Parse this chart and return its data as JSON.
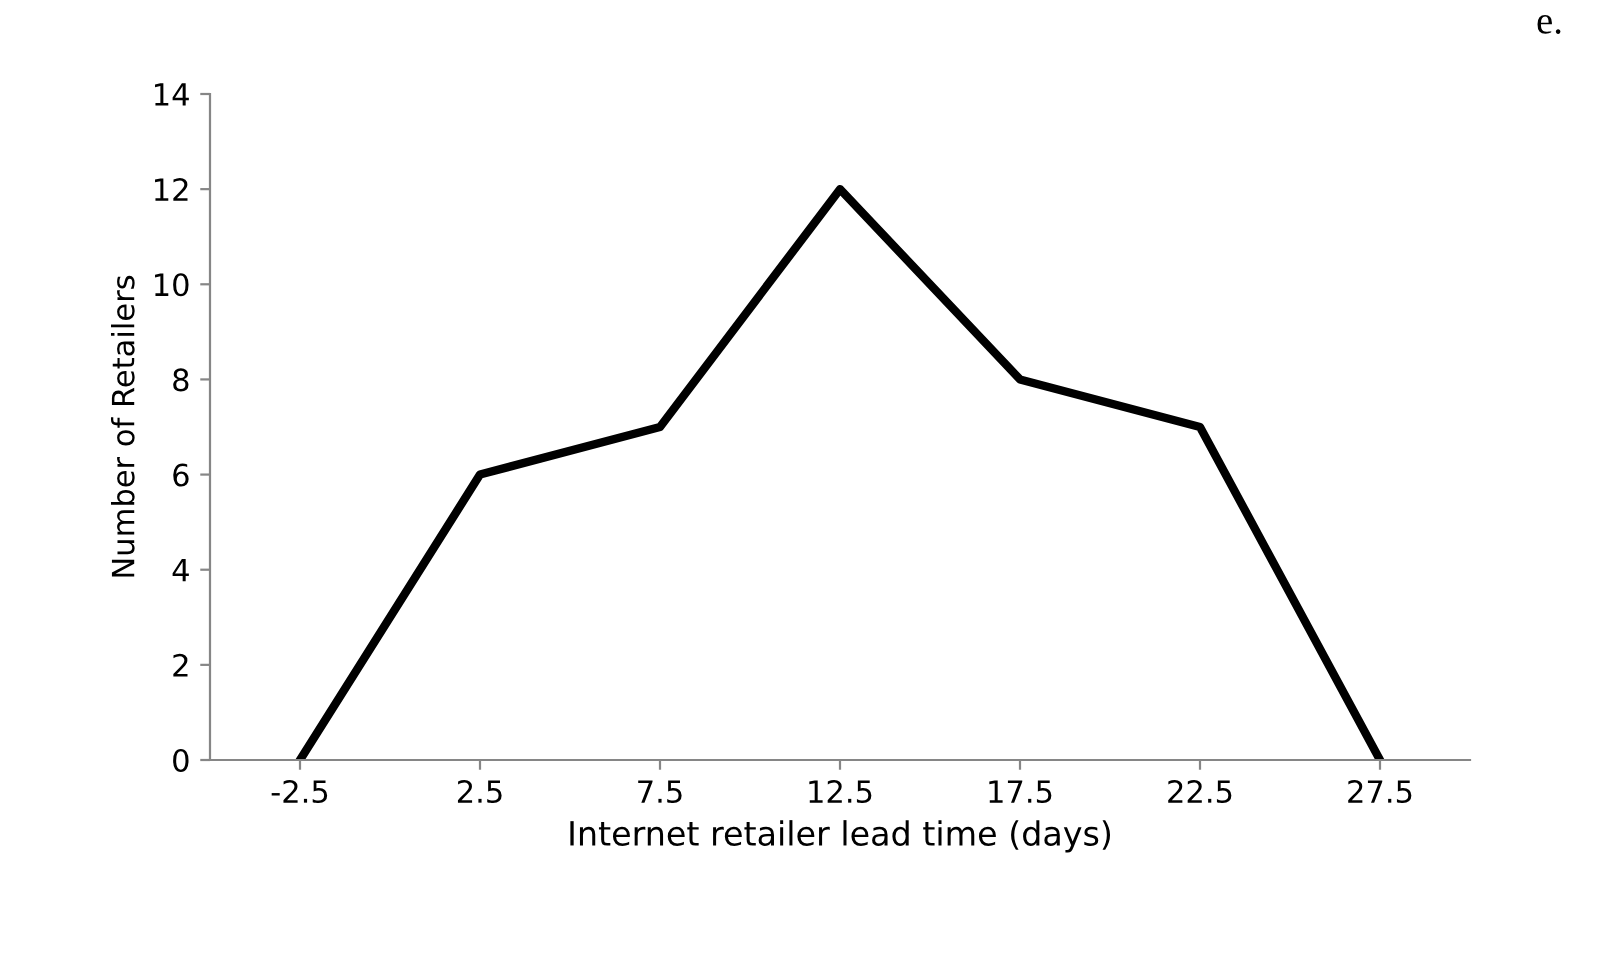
{
  "chart_data": {
    "type": "line",
    "xlabel": "Internet retailer lead time (days)",
    "ylabel": "Number of Retailers",
    "categories": [
      "-2.5",
      "2.5",
      "7.5",
      "12.5",
      "17.5",
      "22.5",
      "27.5"
    ],
    "series": [
      {
        "color": "#000000",
        "values": [
          0,
          6,
          7,
          12,
          8,
          7,
          0
        ]
      }
    ],
    "ylim": [
      0,
      14
    ],
    "yticks": [
      0,
      2,
      4,
      6,
      8,
      10,
      12,
      14
    ],
    "grid": false,
    "legend": false,
    "marker": "none",
    "line_style": "solid",
    "annotations": [
      "e."
    ]
  }
}
